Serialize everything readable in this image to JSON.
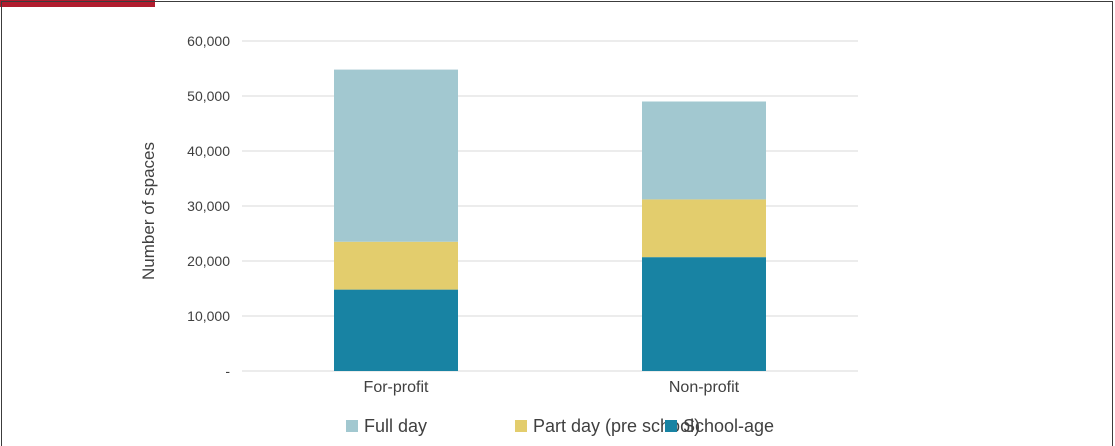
{
  "chart_data": {
    "type": "bar",
    "stacked": true,
    "categories": [
      "For-profit",
      "Non-profit"
    ],
    "series": [
      {
        "name": "School-age",
        "values": [
          14800,
          20700
        ],
        "color": "#1883a3"
      },
      {
        "name": "Part day (pre school)",
        "values": [
          8700,
          10500
        ],
        "color": "#e3cd6d"
      },
      {
        "name": "Full day",
        "values": [
          31300,
          17800
        ],
        "color": "#a2c8d0"
      }
    ],
    "legend_order": [
      "Full day",
      "Part day (pre school)",
      "School-age"
    ],
    "ylabel": "Number of spaces",
    "ylim": [
      0,
      60000
    ],
    "yticks": [
      0,
      10000,
      20000,
      30000,
      40000,
      50000,
      60000
    ],
    "ytick_labels": [
      "-",
      "10,000",
      "20,000",
      "30,000",
      "40,000",
      "50,000",
      "60,000"
    ],
    "grid": true,
    "legend_position": "bottom"
  },
  "colors": {
    "accent": "#b01c2e",
    "grid": "#d9d9d9",
    "text": "#404040"
  }
}
